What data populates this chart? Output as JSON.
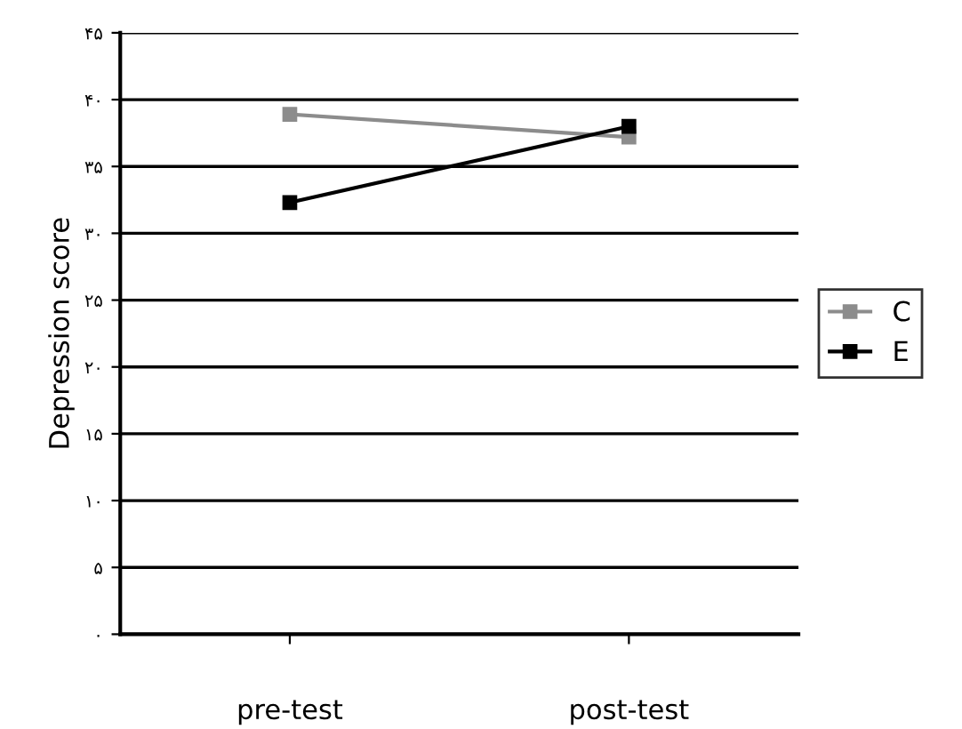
{
  "chart_data": {
    "type": "line",
    "ylabel": "Depression score",
    "categories": [
      "pre-test",
      "post-test"
    ],
    "series": [
      {
        "name": "C",
        "color": "#8c8c8c",
        "values": [
          38.9,
          37.2
        ]
      },
      {
        "name": "E",
        "color": "#000000",
        "values": [
          32.3,
          38.0
        ]
      }
    ],
    "ylim": [
      0,
      45
    ],
    "yticks": [
      {
        "value": 0,
        "label": "۰"
      },
      {
        "value": 5,
        "label": "۵"
      },
      {
        "value": 10,
        "label": "۱۰"
      },
      {
        "value": 15,
        "label": "۱۵"
      },
      {
        "value": 20,
        "label": "۲۰"
      },
      {
        "value": 25,
        "label": "۲۵"
      },
      {
        "value": 30,
        "label": "۳۰"
      },
      {
        "value": 35,
        "label": "۳۵"
      },
      {
        "value": 40,
        "label": "۴۰"
      },
      {
        "value": 45,
        "label": "۴۵"
      }
    ],
    "grid": "y",
    "legend": "right",
    "marker": "square",
    "line_style": "solid"
  }
}
